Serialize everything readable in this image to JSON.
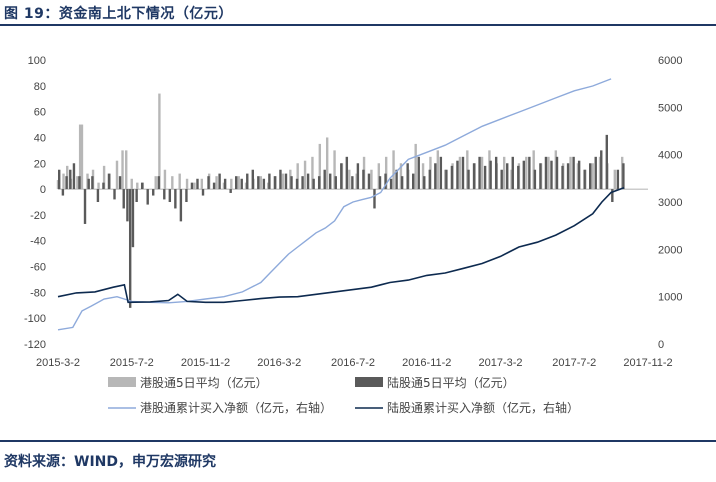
{
  "header": {
    "title": "图 19：资金南上北下情况（亿元）"
  },
  "footer": {
    "source": "资料来源：WIND，申万宏源研究"
  },
  "chart_data": {
    "type": "bar+line",
    "left_axis": {
      "ylim": [
        -120,
        100
      ],
      "ticks": [
        "100",
        "80",
        "60",
        "40",
        "20",
        "0",
        "-20",
        "-40",
        "-60",
        "-80",
        "-100",
        "-120"
      ]
    },
    "right_axis": {
      "ylim": [
        0,
        6000
      ],
      "ticks": [
        "6000",
        "5000",
        "4000",
        "3000",
        "2000",
        "1000",
        "0"
      ]
    },
    "x_ticks": [
      "2015-3-2",
      "2015-7-2",
      "2015-11-2",
      "2016-3-2",
      "2016-7-2",
      "2016-11-2",
      "2017-3-2",
      "2017-7-2",
      "2017-11-2"
    ],
    "x_range": [
      0,
      32
    ],
    "legend": [
      {
        "name": "港股通5日平均（亿元）",
        "kind": "bar",
        "color": "#b7b7b7"
      },
      {
        "name": "陆股通5日平均（亿元）",
        "kind": "bar",
        "color": "#5a5a5a"
      },
      {
        "name": "港股通累计买入净额（亿元，右轴）",
        "kind": "line",
        "color": "#8eaadb"
      },
      {
        "name": "陆股通累计买入净额（亿元，右轴）",
        "kind": "line",
        "color": "#0d2a4f"
      }
    ],
    "series": [
      {
        "name": "港股通累计买入净额（亿元，右轴）",
        "axis": "right",
        "points": [
          [
            0,
            300
          ],
          [
            0.8,
            350
          ],
          [
            1.3,
            700
          ],
          [
            1.8,
            800
          ],
          [
            2.5,
            950
          ],
          [
            3.2,
            1000
          ],
          [
            4,
            900
          ],
          [
            5,
            880
          ],
          [
            6,
            870
          ],
          [
            7,
            900
          ],
          [
            8,
            950
          ],
          [
            9,
            1000
          ],
          [
            10,
            1100
          ],
          [
            11,
            1300
          ],
          [
            11.5,
            1500
          ],
          [
            12,
            1700
          ],
          [
            12.5,
            1900
          ],
          [
            13,
            2050
          ],
          [
            13.5,
            2200
          ],
          [
            14,
            2350
          ],
          [
            14.5,
            2450
          ],
          [
            15,
            2600
          ],
          [
            15.5,
            2900
          ],
          [
            16,
            3000
          ],
          [
            16.5,
            3050
          ],
          [
            17,
            3100
          ],
          [
            17.5,
            3200
          ],
          [
            18,
            3500
          ],
          [
            18.5,
            3700
          ],
          [
            19,
            3900
          ],
          [
            20,
            4050
          ],
          [
            21,
            4200
          ],
          [
            22,
            4400
          ],
          [
            23,
            4600
          ],
          [
            24,
            4750
          ],
          [
            25,
            4900
          ],
          [
            26,
            5050
          ],
          [
            27,
            5200
          ],
          [
            28,
            5350
          ],
          [
            29,
            5450
          ],
          [
            30,
            5600
          ]
        ]
      },
      {
        "name": "陆股通累计买入净额（亿元，右轴）",
        "axis": "right",
        "points": [
          [
            0,
            1000
          ],
          [
            1,
            1080
          ],
          [
            2,
            1100
          ],
          [
            3,
            1200
          ],
          [
            3.6,
            1250
          ],
          [
            3.8,
            880
          ],
          [
            5,
            890
          ],
          [
            6,
            920
          ],
          [
            6.5,
            1050
          ],
          [
            7,
            900
          ],
          [
            8,
            880
          ],
          [
            9,
            880
          ],
          [
            10,
            920
          ],
          [
            11,
            960
          ],
          [
            12,
            990
          ],
          [
            13,
            1000
          ],
          [
            14,
            1050
          ],
          [
            15,
            1100
          ],
          [
            16,
            1150
          ],
          [
            17,
            1200
          ],
          [
            18,
            1300
          ],
          [
            19,
            1350
          ],
          [
            20,
            1450
          ],
          [
            21,
            1500
          ],
          [
            22,
            1600
          ],
          [
            23,
            1700
          ],
          [
            24,
            1850
          ],
          [
            25,
            2050
          ],
          [
            26,
            2150
          ],
          [
            27,
            2300
          ],
          [
            28,
            2500
          ],
          [
            29,
            2750
          ],
          [
            29.5,
            3000
          ],
          [
            30,
            3200
          ],
          [
            30.7,
            3300
          ]
        ]
      }
    ],
    "bars_hk": [
      [
        0,
        7
      ],
      [
        0.3,
        12
      ],
      [
        0.5,
        18
      ],
      [
        0.7,
        8
      ],
      [
        1.05,
        10
      ],
      [
        1.2,
        50
      ],
      [
        1.3,
        50
      ],
      [
        1.6,
        12
      ],
      [
        1.9,
        15
      ],
      [
        2.2,
        5
      ],
      [
        2.5,
        18
      ],
      [
        2.8,
        12
      ],
      [
        3.2,
        22
      ],
      [
        3.5,
        30
      ],
      [
        3.7,
        30
      ],
      [
        4,
        8
      ],
      [
        4.3,
        5
      ],
      [
        4.6,
        5
      ],
      [
        5.3,
        10
      ],
      [
        5.5,
        74
      ],
      [
        5.8,
        15
      ],
      [
        6.2,
        10
      ],
      [
        6.6,
        12
      ],
      [
        7,
        8
      ],
      [
        7.4,
        5
      ],
      [
        7.8,
        8
      ],
      [
        8.2,
        12
      ],
      [
        8.6,
        10
      ],
      [
        9,
        5
      ],
      [
        9.4,
        8
      ],
      [
        9.8,
        10
      ],
      [
        10.2,
        5
      ],
      [
        10.6,
        8
      ],
      [
        11,
        10
      ],
      [
        11.4,
        5
      ],
      [
        11.8,
        10
      ],
      [
        12.2,
        12
      ],
      [
        12.6,
        15
      ],
      [
        13,
        20
      ],
      [
        13.4,
        22
      ],
      [
        13.8,
        25
      ],
      [
        14.2,
        35
      ],
      [
        14.6,
        40
      ],
      [
        15,
        30
      ],
      [
        15.4,
        20
      ],
      [
        15.8,
        15
      ],
      [
        16.2,
        12
      ],
      [
        16.6,
        25
      ],
      [
        17,
        15
      ],
      [
        17.4,
        20
      ],
      [
        17.8,
        25
      ],
      [
        18.2,
        30
      ],
      [
        18.6,
        20
      ],
      [
        19,
        15
      ],
      [
        19.4,
        35
      ],
      [
        19.8,
        20
      ],
      [
        20.2,
        25
      ],
      [
        20.6,
        30
      ],
      [
        21,
        15
      ],
      [
        21.4,
        20
      ],
      [
        21.8,
        25
      ],
      [
        22.2,
        30
      ],
      [
        22.6,
        20
      ],
      [
        23,
        25
      ],
      [
        23.4,
        30
      ],
      [
        23.8,
        20
      ],
      [
        24.2,
        25
      ],
      [
        24.6,
        15
      ],
      [
        25,
        20
      ],
      [
        25.4,
        25
      ],
      [
        25.8,
        30
      ],
      [
        26.2,
        20
      ],
      [
        26.6,
        25
      ],
      [
        27,
        30
      ],
      [
        27.4,
        20
      ],
      [
        27.8,
        25
      ],
      [
        28.2,
        20
      ],
      [
        28.6,
        15
      ],
      [
        29,
        20
      ],
      [
        29.4,
        25
      ],
      [
        29.8,
        20
      ],
      [
        30.2,
        15
      ],
      [
        30.6,
        25
      ]
    ],
    "bars_sz": [
      [
        0,
        15
      ],
      [
        0.2,
        -5
      ],
      [
        0.4,
        10
      ],
      [
        0.6,
        15
      ],
      [
        0.8,
        20
      ],
      [
        1.1,
        10
      ],
      [
        1.4,
        -27
      ],
      [
        1.6,
        8
      ],
      [
        1.8,
        10
      ],
      [
        2.1,
        -10
      ],
      [
        2.4,
        5
      ],
      [
        2.7,
        12
      ],
      [
        3.0,
        -8
      ],
      [
        3.3,
        10
      ],
      [
        3.5,
        -15
      ],
      [
        3.7,
        -25
      ],
      [
        3.85,
        -92
      ],
      [
        4.0,
        -45
      ],
      [
        4.2,
        -10
      ],
      [
        4.5,
        5
      ],
      [
        4.8,
        -12
      ],
      [
        5.1,
        -5
      ],
      [
        5.4,
        10
      ],
      [
        5.7,
        -8
      ],
      [
        6.0,
        -10
      ],
      [
        6.3,
        -15
      ],
      [
        6.6,
        -25
      ],
      [
        6.9,
        -10
      ],
      [
        7.2,
        5
      ],
      [
        7.5,
        8
      ],
      [
        7.8,
        -5
      ],
      [
        8.1,
        10
      ],
      [
        8.4,
        5
      ],
      [
        8.7,
        12
      ],
      [
        9.0,
        8
      ],
      [
        9.3,
        -3
      ],
      [
        9.6,
        10
      ],
      [
        9.9,
        8
      ],
      [
        10.2,
        12
      ],
      [
        10.5,
        15
      ],
      [
        10.8,
        10
      ],
      [
        11.1,
        8
      ],
      [
        11.4,
        12
      ],
      [
        11.7,
        10
      ],
      [
        12.0,
        15
      ],
      [
        12.3,
        12
      ],
      [
        12.6,
        10
      ],
      [
        12.9,
        8
      ],
      [
        13.2,
        10
      ],
      [
        13.5,
        12
      ],
      [
        13.8,
        8
      ],
      [
        14.1,
        10
      ],
      [
        14.4,
        15
      ],
      [
        14.7,
        12
      ],
      [
        15.0,
        10
      ],
      [
        15.3,
        20
      ],
      [
        15.6,
        25
      ],
      [
        15.9,
        10
      ],
      [
        16.2,
        20
      ],
      [
        16.5,
        15
      ],
      [
        16.8,
        12
      ],
      [
        17.1,
        -15
      ],
      [
        17.4,
        10
      ],
      [
        17.7,
        12
      ],
      [
        18.0,
        8
      ],
      [
        18.3,
        15
      ],
      [
        18.6,
        10
      ],
      [
        18.9,
        20
      ],
      [
        19.2,
        12
      ],
      [
        19.5,
        25
      ],
      [
        19.8,
        10
      ],
      [
        20.1,
        15
      ],
      [
        20.4,
        20
      ],
      [
        20.7,
        25
      ],
      [
        21.0,
        15
      ],
      [
        21.3,
        18
      ],
      [
        21.6,
        22
      ],
      [
        21.9,
        25
      ],
      [
        22.2,
        15
      ],
      [
        22.5,
        20
      ],
      [
        22.8,
        25
      ],
      [
        23.1,
        18
      ],
      [
        23.4,
        22
      ],
      [
        23.7,
        25
      ],
      [
        24.0,
        15
      ],
      [
        24.3,
        20
      ],
      [
        24.6,
        25
      ],
      [
        24.9,
        18
      ],
      [
        25.2,
        22
      ],
      [
        25.5,
        25
      ],
      [
        25.8,
        15
      ],
      [
        26.1,
        20
      ],
      [
        26.4,
        25
      ],
      [
        26.7,
        22
      ],
      [
        27.0,
        25
      ],
      [
        27.3,
        18
      ],
      [
        27.6,
        20
      ],
      [
        27.9,
        25
      ],
      [
        28.2,
        22
      ],
      [
        28.5,
        15
      ],
      [
        28.8,
        20
      ],
      [
        29.1,
        25
      ],
      [
        29.4,
        30
      ],
      [
        29.7,
        42
      ],
      [
        30.0,
        -10
      ],
      [
        30.3,
        15
      ],
      [
        30.6,
        20
      ]
    ]
  }
}
